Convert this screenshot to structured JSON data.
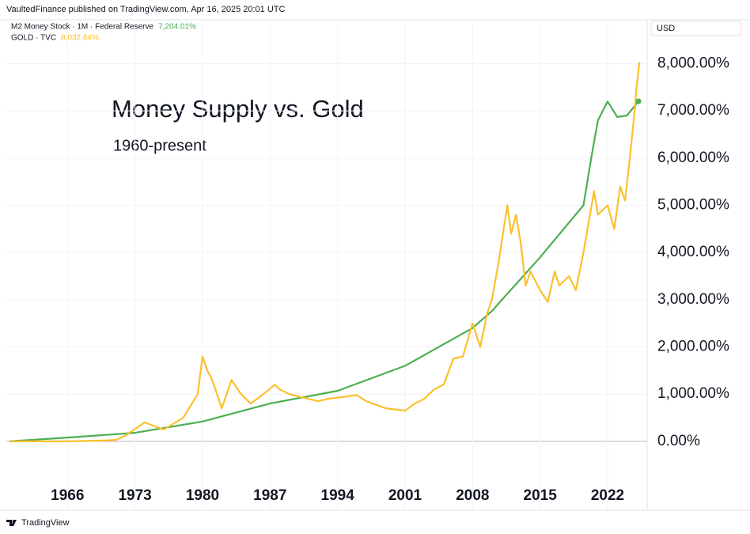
{
  "header": {
    "publisher": "VaultedFinance published on TradingView.com, Apr 16, 2025 20:01 UTC"
  },
  "footer": {
    "brand": "TradingView"
  },
  "chart_data": {
    "type": "line",
    "title": "Money Supply vs. Gold",
    "subtitle": "1960-present",
    "currency": "USD",
    "xlim": [
      1959.66,
      2026.1
    ],
    "xticks": [
      1966,
      1973,
      1980,
      1987,
      1994,
      2001,
      2008,
      2015,
      2022
    ],
    "ylim": [
      -1460,
      8930
    ],
    "yticks": [
      {
        "value": 0,
        "label": "0.00%"
      },
      {
        "value": 1000,
        "label": "1,000.00%"
      },
      {
        "value": 2000,
        "label": "2,000.00%"
      },
      {
        "value": 3000,
        "label": "3,000.00%"
      },
      {
        "value": 4000,
        "label": "4,000.00%"
      },
      {
        "value": 5000,
        "label": "5,000.00%"
      },
      {
        "value": 6000,
        "label": "6,000.00%"
      },
      {
        "value": 7000,
        "label": "7,000.00%"
      },
      {
        "value": 8000,
        "label": "8,000.00%"
      }
    ],
    "grid": true,
    "series": [
      {
        "name": "M2 Money Stock · 1M · Federal Reserve",
        "color": "#4caf50",
        "last_value": 7204.01,
        "last_value_label": "7,204.01%",
        "x": [
          1960,
          1966,
          1973,
          1980,
          1987,
          1994,
          2001,
          2008,
          2010,
          2015,
          2019.5,
          2020.3,
          2021,
          2022,
          2023,
          2024,
          2025.2
        ],
        "values": [
          0,
          80,
          180,
          420,
          800,
          1070,
          1600,
          2400,
          2760,
          3900,
          5000,
          6000,
          6800,
          7200,
          6870,
          6900,
          7204.01
        ]
      },
      {
        "name": "GOLD · TVC",
        "color": "#fbc02d",
        "last_value": 8032.64,
        "last_value_label": "8,032.64%",
        "x": [
          1960,
          1966,
          1970,
          1971,
          1972,
          1974,
          1976,
          1978,
          1979.5,
          1980,
          1980.5,
          1981,
          1982,
          1983,
          1984,
          1985,
          1986,
          1987.5,
          1988,
          1989,
          1990,
          1992,
          1993,
          1996,
          1997,
          1999,
          2001,
          2002,
          2003,
          2004,
          2005,
          2006,
          2007,
          2008,
          2008.8,
          2009.5,
          2010,
          2010.7,
          2011.6,
          2012,
          2012.5,
          2013,
          2013.5,
          2014,
          2015,
          2015.8,
          2016.5,
          2017,
          2018,
          2018.7,
          2019.5,
          2020.6,
          2021,
          2022,
          2022.7,
          2023.3,
          2023.8,
          2024.3,
          2024.8,
          2025,
          2025.3
        ],
        "values": [
          0,
          0,
          20,
          30,
          120,
          400,
          250,
          500,
          1000,
          1800,
          1500,
          1300,
          700,
          1300,
          1000,
          800,
          950,
          1200,
          1100,
          1000,
          950,
          850,
          900,
          980,
          850,
          700,
          650,
          800,
          900,
          1100,
          1200,
          1750,
          1800,
          2500,
          2000,
          2700,
          3000,
          3800,
          5000,
          4400,
          4800,
          4200,
          3300,
          3600,
          3200,
          2950,
          3600,
          3300,
          3500,
          3200,
          4000,
          5300,
          4800,
          5000,
          4500,
          5400,
          5100,
          6000,
          7000,
          7500,
          8032.64
        ]
      }
    ]
  }
}
